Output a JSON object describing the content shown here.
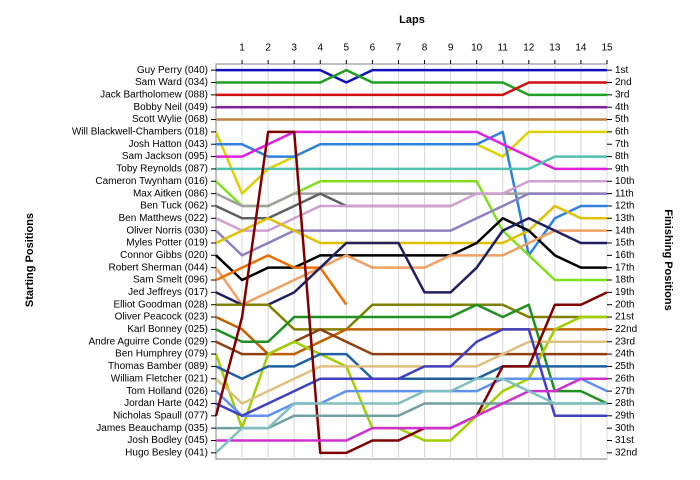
{
  "chart_data": {
    "type": "line",
    "title": "Laps",
    "y_label": "Starting Positions",
    "y2_label": "Finishing Positions",
    "x": [
      0,
      1,
      2,
      3,
      4,
      5,
      6,
      7,
      8,
      9,
      10,
      11,
      12,
      13,
      14,
      15
    ],
    "xlim": [
      0,
      15
    ],
    "xticks": [
      1,
      2,
      3,
      4,
      5,
      6,
      7,
      8,
      9,
      10,
      11,
      12,
      13,
      14,
      15
    ],
    "ylim": [
      0.5,
      32.5
    ],
    "y_inverted": true,
    "grid": true,
    "yticks": [
      {
        "value": 1,
        "label": "1st"
      },
      {
        "value": 2,
        "label": "2nd"
      },
      {
        "value": 3,
        "label": "3rd"
      },
      {
        "value": 4,
        "label": "4th"
      },
      {
        "value": 5,
        "label": "5th"
      },
      {
        "value": 6,
        "label": "6th"
      },
      {
        "value": 7,
        "label": "7th"
      },
      {
        "value": 8,
        "label": "8th"
      },
      {
        "value": 9,
        "label": "9th"
      },
      {
        "value": 10,
        "label": "10th"
      },
      {
        "value": 11,
        "label": "11th"
      },
      {
        "value": 12,
        "label": "12th"
      },
      {
        "value": 13,
        "label": "13th"
      },
      {
        "value": 14,
        "label": "14th"
      },
      {
        "value": 15,
        "label": "15th"
      },
      {
        "value": 16,
        "label": "16th"
      },
      {
        "value": 17,
        "label": "17th"
      },
      {
        "value": 18,
        "label": "18th"
      },
      {
        "value": 19,
        "label": "19th"
      },
      {
        "value": 20,
        "label": "20th"
      },
      {
        "value": 21,
        "label": "21st"
      },
      {
        "value": 22,
        "label": "22nd"
      },
      {
        "value": 23,
        "label": "23rd"
      },
      {
        "value": 24,
        "label": "24th"
      },
      {
        "value": 25,
        "label": "25th"
      },
      {
        "value": 26,
        "label": "26th"
      },
      {
        "value": 27,
        "label": "27th"
      },
      {
        "value": 28,
        "label": "28th"
      },
      {
        "value": 29,
        "label": "29th"
      },
      {
        "value": 30,
        "label": "30th"
      },
      {
        "value": 31,
        "label": "31st"
      },
      {
        "value": 32,
        "label": "32nd"
      }
    ],
    "series": [
      {
        "name": "Guy Perry (040)",
        "color": "#1010c0",
        "values": [
          1,
          1,
          1,
          1,
          1,
          2,
          1,
          1,
          1,
          1,
          1,
          1,
          1,
          1,
          1,
          1
        ]
      },
      {
        "name": "Sam Ward (034)",
        "color": "#20a020",
        "values": [
          2,
          2,
          2,
          2,
          2,
          1,
          2,
          2,
          2,
          2,
          2,
          2,
          3,
          3,
          3,
          3
        ]
      },
      {
        "name": "Jack Bartholomew (088)",
        "color": "#d01010",
        "values": [
          3,
          3,
          3,
          3,
          3,
          3,
          3,
          3,
          3,
          3,
          3,
          3,
          2,
          2,
          2,
          2
        ]
      },
      {
        "name": "Bobby Neil (049)",
        "color": "#8020a0",
        "values": [
          4,
          4,
          4,
          4,
          4,
          4,
          4,
          4,
          4,
          4,
          4,
          4,
          4,
          4,
          4,
          4
        ]
      },
      {
        "name": "Scott Wylie (068)",
        "color": "#c08040",
        "values": [
          5,
          5,
          5,
          5,
          5,
          5,
          5,
          5,
          5,
          5,
          5,
          5,
          5,
          5,
          5,
          5
        ]
      },
      {
        "name": "Will Blackwell-Chambers (018)",
        "color": "#e0d000",
        "values": [
          6,
          11,
          9,
          8,
          7,
          7,
          7,
          7,
          7,
          7,
          7,
          8,
          6,
          6,
          6,
          6
        ]
      },
      {
        "name": "Josh Hatton (043)",
        "color": "#3080e0",
        "values": [
          7,
          7,
          8,
          8,
          7,
          7,
          7,
          7,
          7,
          7,
          7,
          6,
          16,
          13,
          12,
          12
        ]
      },
      {
        "name": "Sam Jackson (095)",
        "color": "#e020e0",
        "values": [
          8,
          8,
          7,
          6,
          6,
          6,
          6,
          6,
          6,
          6,
          6,
          7,
          8,
          9,
          9,
          9
        ]
      },
      {
        "name": "Toby Reynolds (087)",
        "color": "#50c0b0",
        "values": [
          9,
          9,
          9,
          9,
          9,
          9,
          9,
          9,
          9,
          9,
          9,
          9,
          9,
          8,
          8,
          8
        ]
      },
      {
        "name": "Cameron Twynham (016)",
        "color": "#80e020",
        "values": [
          10,
          12,
          12,
          11,
          10,
          10,
          10,
          10,
          10,
          10,
          10,
          14,
          16,
          18,
          18,
          18
        ]
      },
      {
        "name": "Max Aitken (086)",
        "color": "#a0a0a0",
        "values": [
          11,
          12,
          12,
          11,
          11,
          11,
          11,
          11,
          11,
          11,
          11,
          11,
          11,
          11,
          11,
          11
        ]
      },
      {
        "name": "Ben Tuck (062)",
        "color": "#606060",
        "values": [
          12,
          13,
          13,
          12,
          11,
          12,
          12,
          12,
          12,
          12,
          null,
          null,
          null,
          null,
          null,
          null
        ]
      },
      {
        "name": "Ben Matthews (022)",
        "color": "#d0a0d0",
        "values": [
          13,
          14,
          14,
          13,
          12,
          12,
          12,
          12,
          12,
          12,
          11,
          11,
          10,
          10,
          10,
          10
        ]
      },
      {
        "name": "Oliver Norris (030)",
        "color": "#9080c0",
        "values": [
          14,
          16,
          15,
          14,
          14,
          14,
          14,
          14,
          14,
          14,
          13,
          12,
          11,
          11,
          11,
          11
        ]
      },
      {
        "name": "Myles Potter (019)",
        "color": "#e0c000",
        "values": [
          15,
          14,
          13,
          14,
          15,
          15,
          15,
          15,
          15,
          15,
          15,
          15,
          14,
          12,
          13,
          13
        ]
      },
      {
        "name": "Connor Gibbs (020)",
        "color": "#000000",
        "values": [
          16,
          18,
          17,
          17,
          16,
          16,
          16,
          16,
          16,
          16,
          15,
          13,
          14,
          16,
          17,
          17
        ]
      },
      {
        "name": "Robert Sherman (044)",
        "color": "#f0a060",
        "values": [
          17,
          20,
          19,
          18,
          17,
          16,
          17,
          17,
          17,
          16,
          16,
          16,
          15,
          14,
          14,
          14
        ]
      },
      {
        "name": "Sam Smelt (096)",
        "color": "#f07000",
        "values": [
          18,
          17,
          16,
          17,
          17,
          20,
          null,
          null,
          null,
          null,
          null,
          null,
          null,
          null,
          null,
          null
        ]
      },
      {
        "name": "Jed Jeffreys (017)",
        "color": "#202060",
        "values": [
          19,
          20,
          20,
          19,
          17,
          15,
          15,
          15,
          19,
          19,
          17,
          14,
          13,
          14,
          15,
          15
        ]
      },
      {
        "name": "Elliot Goodman (028)",
        "color": "#808000",
        "values": [
          20,
          20,
          20,
          22,
          22,
          22,
          20,
          20,
          20,
          20,
          20,
          20,
          21,
          21,
          21,
          21
        ]
      },
      {
        "name": "Oliver Peacock (023)",
        "color": "#c06000",
        "values": [
          21,
          22,
          24,
          24,
          23,
          22,
          22,
          22,
          22,
          22,
          22,
          22,
          22,
          22,
          22,
          22
        ]
      },
      {
        "name": "Karl Bonney (025)",
        "color": "#209020",
        "values": [
          22,
          23,
          23,
          21,
          21,
          21,
          21,
          21,
          21,
          21,
          20,
          21,
          20,
          27,
          27,
          28
        ]
      },
      {
        "name": "Andre Aguirre Conde (029)",
        "color": "#904010",
        "values": [
          23,
          24,
          24,
          23,
          22,
          23,
          24,
          24,
          24,
          24,
          24,
          24,
          24,
          24,
          24,
          24
        ]
      },
      {
        "name": "Ben Humphrey (079)",
        "color": "#a0d000",
        "values": [
          24,
          30,
          24,
          23,
          24,
          25,
          30,
          30,
          31,
          31,
          29,
          27,
          26,
          22,
          21,
          21
        ]
      },
      {
        "name": "Thomas Bamber (089)",
        "color": "#2060a0",
        "values": [
          25,
          26,
          25,
          25,
          24,
          24,
          26,
          26,
          26,
          26,
          26,
          25,
          25,
          25,
          25,
          25
        ]
      },
      {
        "name": "William Fletcher (021)",
        "color": "#e0c080",
        "values": [
          26,
          28,
          27,
          26,
          25,
          25,
          25,
          25,
          25,
          25,
          25,
          24,
          23,
          23,
          23,
          23
        ]
      },
      {
        "name": "Tom Holland (026)",
        "color": "#6090f0",
        "values": [
          27,
          29,
          29,
          28,
          28,
          27,
          27,
          27,
          27,
          27,
          27,
          26,
          26,
          26,
          26,
          27
        ]
      },
      {
        "name": "Jordan Harte (042)",
        "color": "#4040c0",
        "values": [
          28,
          29,
          28,
          27,
          26,
          26,
          26,
          26,
          25,
          25,
          23,
          22,
          22,
          29,
          29,
          29
        ]
      },
      {
        "name": "Nicholas Spaull (077)",
        "color": "#800000",
        "values": [
          29,
          21,
          6,
          6,
          32,
          32,
          31,
          31,
          30,
          30,
          29,
          25,
          25,
          20,
          20,
          19
        ]
      },
      {
        "name": "James Beauchamp (035)",
        "color": "#70a0a0",
        "values": [
          30,
          30,
          30,
          29,
          29,
          29,
          29,
          29,
          28,
          28,
          28,
          28,
          28,
          28,
          28,
          28
        ]
      },
      {
        "name": "Josh Bodley (045)",
        "color": "#d030d0",
        "values": [
          31,
          31,
          31,
          31,
          31,
          31,
          30,
          30,
          30,
          30,
          29,
          28,
          27,
          27,
          26,
          26
        ]
      },
      {
        "name": "Hugo Besley (041)",
        "color": "#80c0c0",
        "values": [
          32,
          30,
          30,
          28,
          28,
          28,
          28,
          28,
          27,
          27,
          26,
          26,
          27,
          28,
          28,
          28
        ]
      }
    ]
  }
}
